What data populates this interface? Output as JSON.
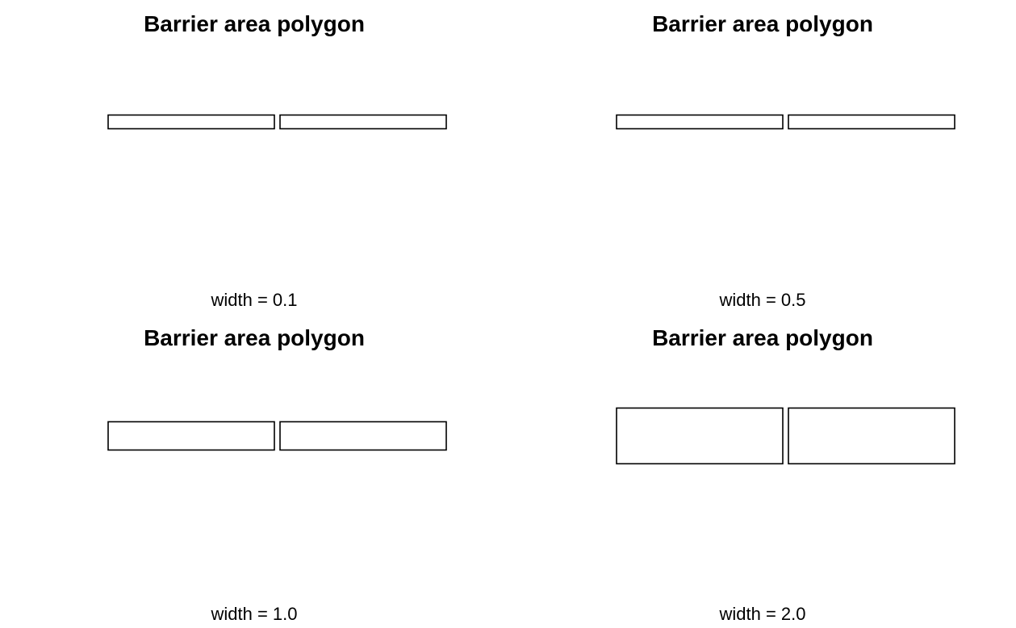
{
  "panels": [
    {
      "title": "Barrier area polygon",
      "caption": "width = 0.1",
      "width_value": 0.1
    },
    {
      "title": "Barrier area polygon",
      "caption": "width = 0.5",
      "width_value": 0.5
    },
    {
      "title": "Barrier area polygon",
      "caption": "width = 1.0",
      "width_value": 1.0
    },
    {
      "title": "Barrier area polygon",
      "caption": "width = 2.0",
      "width_value": 2.0
    }
  ],
  "colors": {
    "stroke": "#000000",
    "background": "#ffffff"
  }
}
